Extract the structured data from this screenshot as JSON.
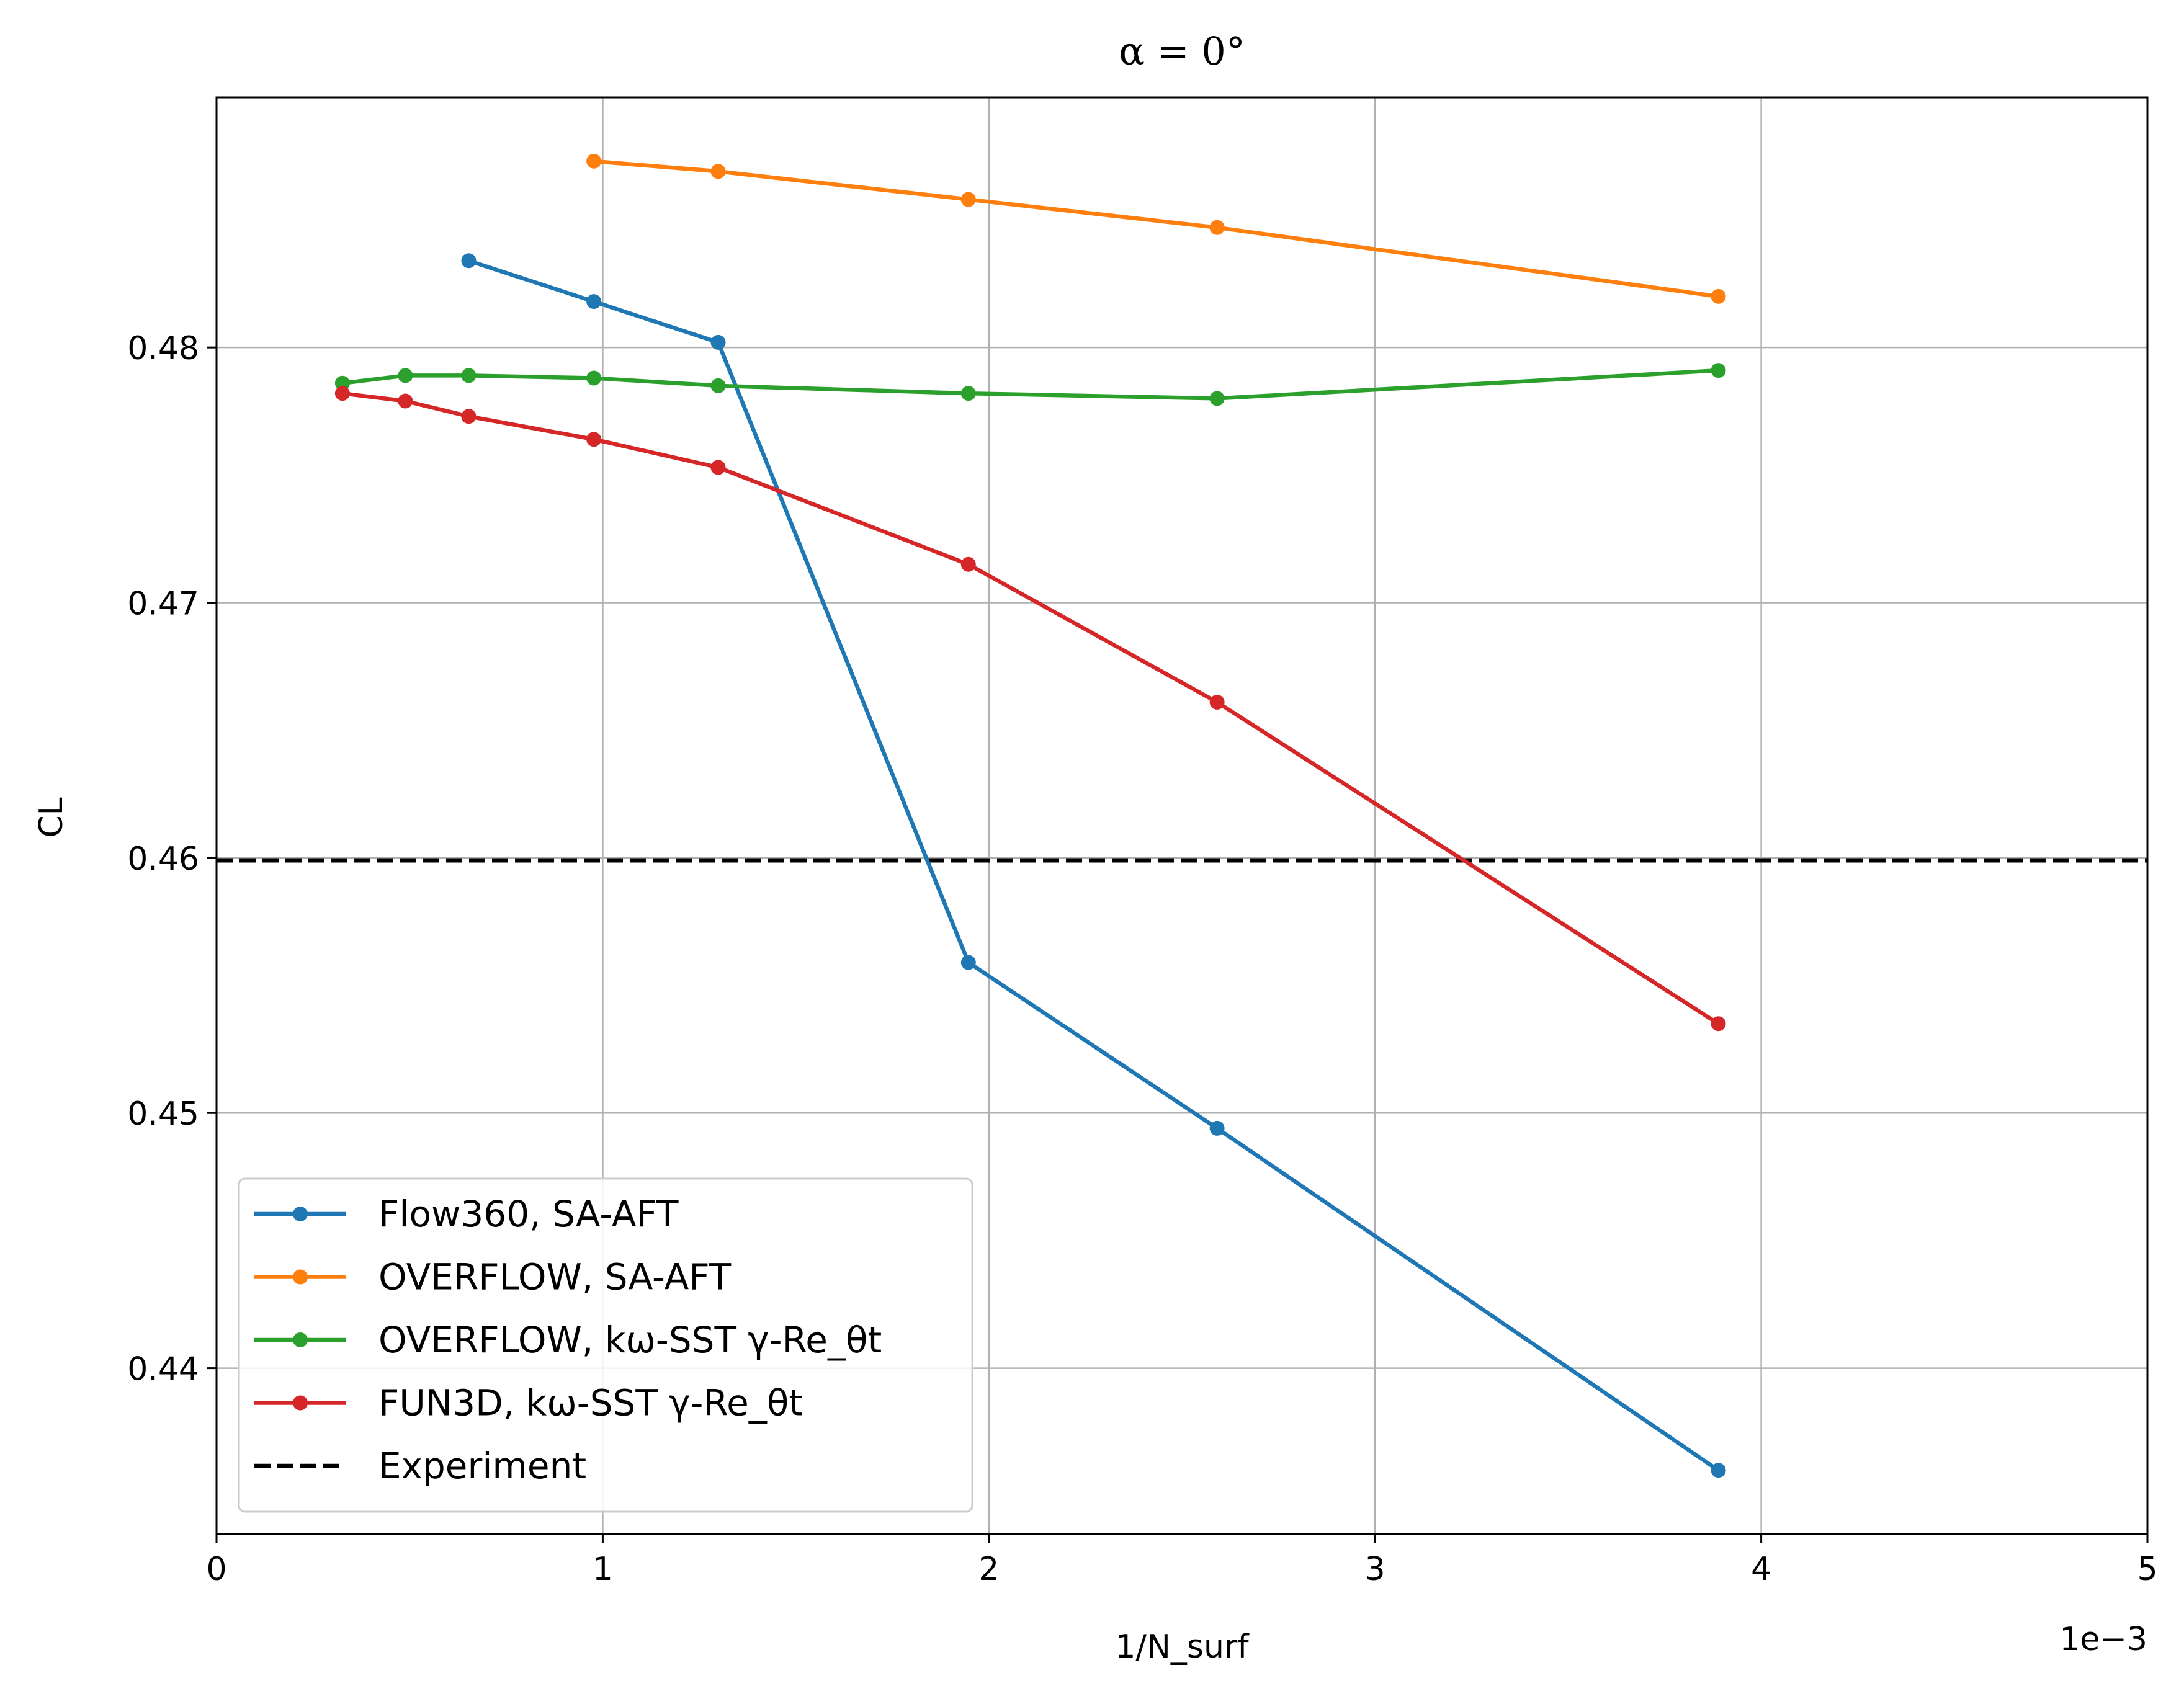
{
  "chart_data": {
    "type": "line",
    "title": "α = 0°",
    "xlabel": "1/N_surf",
    "ylabel": "CL",
    "x_multiplier": "1e−3",
    "xlim": [
      0,
      5
    ],
    "ylim": [
      0.4335,
      0.4898
    ],
    "xticks": [
      0,
      1,
      2,
      3,
      4,
      5
    ],
    "yticks": [
      0.44,
      0.45,
      0.46,
      0.47,
      0.48
    ],
    "xtick_labels": [
      "0",
      "1",
      "2",
      "3",
      "4",
      "5"
    ],
    "ytick_labels": [
      "0.44",
      "0.45",
      "0.46",
      "0.47",
      "0.48"
    ],
    "grid": true,
    "legend_position": "lower-left",
    "series": [
      {
        "name": "Flow360, SA-AFT",
        "color": "#1f77b4",
        "x": [
          0.653,
          0.977,
          1.299,
          1.947,
          2.591,
          3.889
        ],
        "y": [
          0.4834,
          0.4818,
          0.4802,
          0.4559,
          0.4494,
          0.436
        ]
      },
      {
        "name": "OVERFLOW, SA-AFT",
        "color": "#ff7f0e",
        "x": [
          0.977,
          1.299,
          1.947,
          2.591,
          3.889
        ],
        "y": [
          0.4873,
          0.4869,
          0.4858,
          0.4847,
          0.482
        ]
      },
      {
        "name": "OVERFLOW, kω-SST γ-Re_θt",
        "color": "#2ca02c",
        "x": [
          0.326,
          0.489,
          0.653,
          0.977,
          1.299,
          1.947,
          2.591,
          3.889
        ],
        "y": [
          0.4786,
          0.4789,
          0.4789,
          0.4788,
          0.4785,
          0.4782,
          0.478,
          0.4791
        ]
      },
      {
        "name": "FUN3D, kω-SST γ-Re_θt",
        "color": "#d62728",
        "x": [
          0.326,
          0.489,
          0.653,
          0.977,
          1.299,
          1.947,
          2.591,
          3.889
        ],
        "y": [
          0.4782,
          0.4779,
          0.4773,
          0.4764,
          0.4753,
          0.4715,
          0.4661,
          0.4535
        ]
      }
    ],
    "reference_lines": [
      {
        "name": "Experiment",
        "y": 0.4599,
        "color": "#000000",
        "style": "dashed"
      }
    ]
  }
}
